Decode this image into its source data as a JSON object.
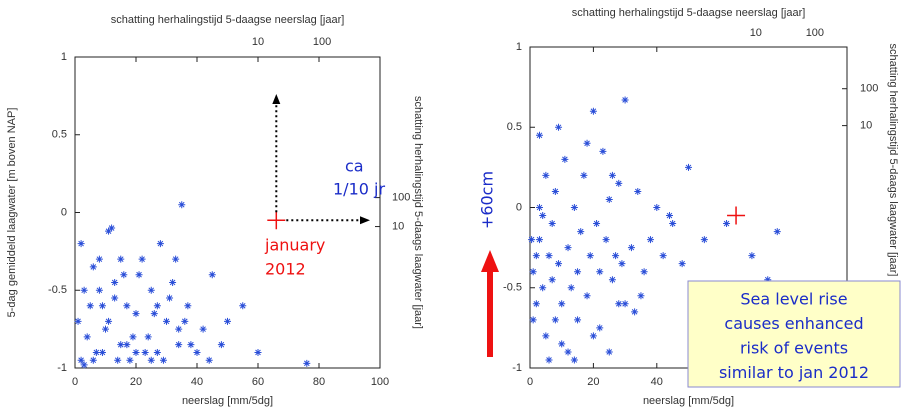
{
  "chart_data": [
    {
      "type": "scatter",
      "x_label": "neerslag [mm/5dg]",
      "y_label": "5-dag gemiddeld laagwater [m boven NAP]",
      "x2_label": "schatting herhalingstijd 5-daagse neerslag [jaar]",
      "y2_label": "schatting herhalingstijd 5-daags laagwater [jaar]",
      "xlim": [
        0,
        100
      ],
      "xticks": [
        0,
        20,
        40,
        60,
        80,
        100
      ],
      "ylim": [
        -1,
        1
      ],
      "yticks": [
        -1,
        -0.5,
        0,
        0.5,
        1
      ],
      "x2lim": [
        0.014,
        800
      ],
      "x2log": true,
      "x2ticks": [
        10,
        100
      ],
      "y2lim": [
        0.00013,
        7200000
      ],
      "y2log": true,
      "y2ticks": [
        10,
        100
      ],
      "color": "#2a4ed8",
      "x": [
        2,
        4,
        5,
        7,
        8,
        10,
        12,
        13,
        15,
        16,
        18,
        20,
        22,
        24,
        25,
        27,
        28,
        30,
        32,
        34,
        35,
        37,
        40,
        42,
        45,
        48,
        50,
        55,
        60,
        76,
        3,
        6,
        9,
        11,
        14,
        17,
        19,
        21,
        23,
        26,
        29,
        31,
        33,
        36,
        38,
        11,
        8,
        15,
        25,
        17,
        1,
        2,
        6,
        13,
        20,
        27,
        34,
        44,
        3,
        9
      ],
      "y": [
        -0.95,
        -0.8,
        -0.6,
        -0.9,
        -0.3,
        -0.75,
        -0.1,
        -0.55,
        -0.85,
        -0.4,
        -0.95,
        -0.65,
        -0.3,
        -0.8,
        -0.5,
        -0.9,
        -0.2,
        -0.7,
        -0.45,
        -0.85,
        0.05,
        -0.6,
        -0.9,
        -0.75,
        -0.4,
        -0.85,
        -0.7,
        -0.6,
        -0.9,
        -0.97,
        -0.5,
        -0.35,
        -0.9,
        -0.7,
        -0.95,
        -0.6,
        -0.8,
        -0.4,
        -0.9,
        -0.65,
        -0.95,
        -0.55,
        -0.3,
        -0.7,
        -0.85,
        -0.12,
        -0.5,
        -0.3,
        -0.95,
        -0.85,
        -0.7,
        -0.2,
        -0.95,
        -0.45,
        -0.9,
        -0.6,
        -0.75,
        -0.95,
        -0.98,
        -0.6
      ],
      "highlight": {
        "x": 66,
        "y": -0.05,
        "color": "#ee1111"
      },
      "annotations": [
        {
          "text": "ca",
          "color": "#1a2cc8"
        },
        {
          "text": "1/10 jr",
          "color": "#1a2cc8"
        },
        {
          "text": "january",
          "color": "#ee1111"
        },
        {
          "text": "2012",
          "color": "#ee1111"
        }
      ]
    },
    {
      "type": "scatter",
      "x_label": "neerslag [mm/5dg]",
      "x2_label": "schatting herhalingstijd 5-daagse neerslag [jaar]",
      "y2_label": "schatting herhalingstijd 5-daags laagwater [jaar]",
      "xlim": [
        0,
        100
      ],
      "xticks": [
        0,
        20,
        40
      ],
      "ylim": [
        -1,
        1
      ],
      "yticks": [
        -1,
        -0.5,
        0,
        0.5,
        1
      ],
      "x2lim": [
        0.0015,
        350
      ],
      "x2log": true,
      "x2ticks": [
        10,
        100
      ],
      "y2lim": [
        2.7e-06,
        1350
      ],
      "y2log": true,
      "y2ticks": [
        10,
        100
      ],
      "color": "#2a4ed8",
      "x": [
        1,
        2,
        3,
        4,
        5,
        6,
        7,
        8,
        9,
        10,
        11,
        12,
        13,
        14,
        15,
        16,
        17,
        18,
        19,
        20,
        21,
        22,
        23,
        24,
        25,
        26,
        27,
        28,
        29,
        30,
        32,
        34,
        36,
        38,
        40,
        42,
        45,
        48,
        50,
        55,
        58,
        62,
        70,
        75,
        78,
        3,
        5,
        8,
        12,
        20,
        6,
        10,
        15,
        22,
        30,
        35,
        4,
        18,
        25,
        2,
        1,
        3,
        7,
        9,
        14,
        28,
        33,
        44,
        0.5,
        26
      ],
      "y": [
        -0.4,
        -0.6,
        -0.2,
        -0.5,
        -0.8,
        -0.3,
        -0.45,
        0.1,
        -0.35,
        -0.6,
        0.3,
        -0.25,
        -0.5,
        0.0,
        -0.4,
        -0.15,
        0.2,
        -0.55,
        -0.3,
        0.6,
        -0.1,
        -0.4,
        0.35,
        -0.2,
        0.05,
        -0.45,
        -0.3,
        0.15,
        -0.35,
        0.67,
        -0.25,
        0.1,
        -0.4,
        -0.2,
        0.0,
        -0.3,
        -0.1,
        -0.35,
        0.25,
        -0.2,
        -0.5,
        -0.1,
        -0.3,
        -0.45,
        -0.15,
        0.45,
        0.2,
        -0.7,
        -0.9,
        -0.8,
        -0.95,
        -0.85,
        -0.7,
        -0.75,
        -0.6,
        -0.55,
        -0.05,
        0.4,
        -0.9,
        -0.3,
        -0.7,
        0.0,
        -0.1,
        0.5,
        -0.95,
        -0.6,
        -0.65,
        -0.05,
        -0.2,
        0.2
      ],
      "highlight": {
        "x": 65,
        "y": -0.05,
        "color": "#ee1111"
      },
      "annotations": [
        {
          "text": "+60cm",
          "color": "#1a2cc8"
        }
      ]
    }
  ],
  "callout": {
    "lines": [
      "Sea level rise",
      "causes enhanced",
      "risk of events",
      "similar to jan 2012"
    ]
  }
}
